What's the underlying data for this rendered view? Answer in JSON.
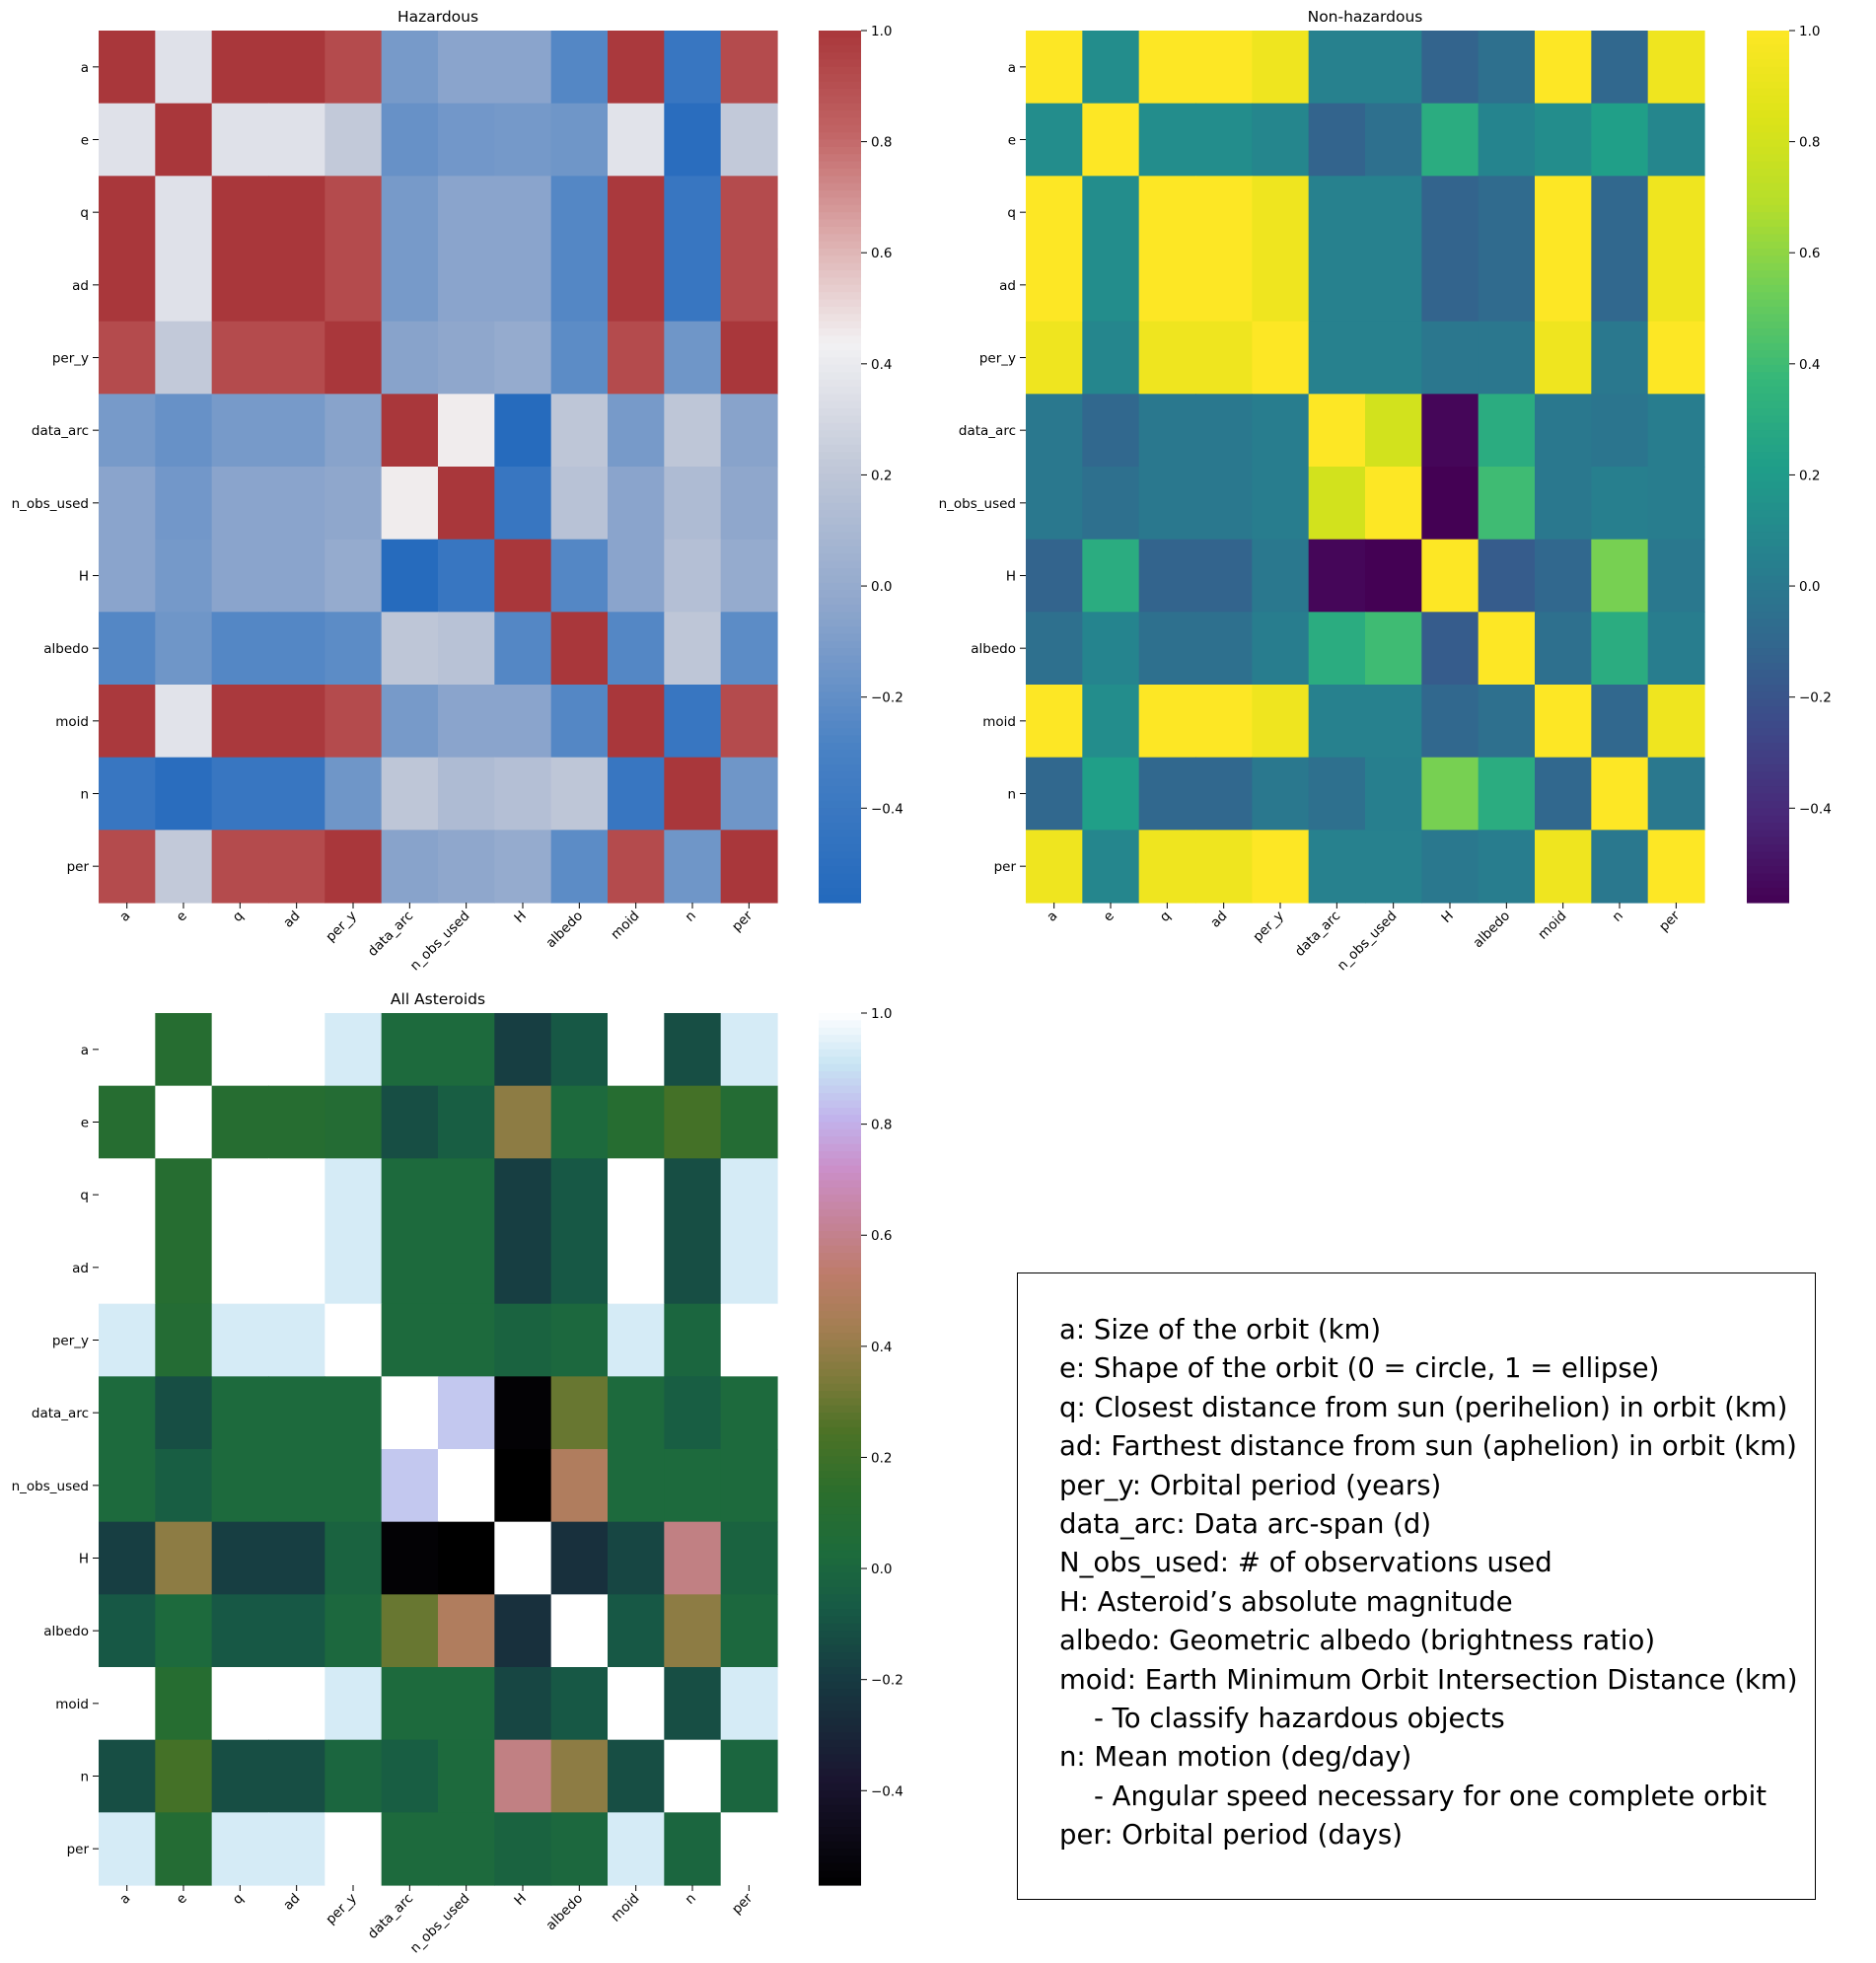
{
  "chart_data": [
    {
      "type": "heatmap",
      "title": "Hazardous",
      "colormap": "vlag",
      "variables": [
        "a",
        "e",
        "q",
        "ad",
        "per_y",
        "data_arc",
        "n_obs_used",
        "H",
        "albedo",
        "moid",
        "n",
        "per"
      ],
      "colorbar_range": [
        -0.57,
        1.0
      ],
      "colorbar_ticks": [
        1.0,
        0.8,
        0.6,
        0.4,
        0.2,
        0.0,
        -0.2,
        -0.4
      ],
      "colorbar_tick_labels": [
        "1.0",
        "0.8",
        "0.6",
        "0.4",
        "0.2",
        "0.0",
        "−0.2",
        "−0.4"
      ],
      "matrix": [
        [
          1.0,
          0.35,
          1.0,
          1.0,
          0.92,
          -0.12,
          -0.05,
          -0.05,
          -0.25,
          0.99,
          -0.42,
          0.92
        ],
        [
          0.35,
          1.0,
          0.35,
          0.35,
          0.22,
          -0.18,
          -0.14,
          -0.13,
          -0.15,
          0.36,
          -0.52,
          0.22
        ],
        [
          1.0,
          0.35,
          1.0,
          1.0,
          0.92,
          -0.12,
          -0.05,
          -0.05,
          -0.25,
          0.99,
          -0.42,
          0.92
        ],
        [
          1.0,
          0.35,
          1.0,
          1.0,
          0.92,
          -0.12,
          -0.05,
          -0.05,
          -0.25,
          0.99,
          -0.42,
          0.92
        ],
        [
          0.92,
          0.22,
          0.92,
          0.92,
          1.0,
          -0.06,
          -0.03,
          0.0,
          -0.22,
          0.92,
          -0.15,
          1.0
        ],
        [
          -0.12,
          -0.18,
          -0.12,
          -0.12,
          -0.06,
          1.0,
          0.45,
          -0.55,
          0.2,
          -0.12,
          0.2,
          -0.06
        ],
        [
          -0.05,
          -0.14,
          -0.05,
          -0.05,
          -0.03,
          0.45,
          1.0,
          -0.42,
          0.17,
          -0.05,
          0.12,
          -0.03
        ],
        [
          -0.05,
          -0.13,
          -0.05,
          -0.05,
          0.0,
          -0.55,
          -0.42,
          1.0,
          -0.25,
          -0.05,
          0.15,
          0.0
        ],
        [
          -0.25,
          -0.15,
          -0.25,
          -0.25,
          -0.22,
          0.2,
          0.17,
          -0.25,
          1.0,
          -0.25,
          0.2,
          -0.22
        ],
        [
          0.99,
          0.36,
          0.99,
          0.99,
          0.92,
          -0.12,
          -0.05,
          -0.05,
          -0.25,
          1.0,
          -0.42,
          0.92
        ],
        [
          -0.42,
          -0.52,
          -0.42,
          -0.42,
          -0.15,
          0.2,
          0.12,
          0.15,
          0.2,
          -0.42,
          1.0,
          -0.15
        ],
        [
          0.92,
          0.22,
          0.92,
          0.92,
          1.0,
          -0.06,
          -0.03,
          0.0,
          -0.22,
          0.92,
          -0.15,
          1.0
        ]
      ]
    },
    {
      "type": "heatmap",
      "title": "Non-hazardous",
      "colormap": "viridis",
      "variables": [
        "a",
        "e",
        "q",
        "ad",
        "per_y",
        "data_arc",
        "n_obs_used",
        "H",
        "albedo",
        "moid",
        "n",
        "per"
      ],
      "colorbar_range": [
        -0.57,
        1.0
      ],
      "colorbar_ticks": [
        1.0,
        0.8,
        0.6,
        0.4,
        0.2,
        0.0,
        -0.2,
        -0.4
      ],
      "colorbar_tick_labels": [
        "1.0",
        "0.8",
        "0.6",
        "0.4",
        "0.2",
        "0.0",
        "−0.2",
        "−0.4"
      ],
      "matrix": [
        [
          1.0,
          0.12,
          1.0,
          1.0,
          0.93,
          0.05,
          0.05,
          -0.12,
          -0.05,
          1.0,
          -0.1,
          0.93
        ],
        [
          0.12,
          1.0,
          0.12,
          0.12,
          0.08,
          -0.12,
          -0.05,
          0.3,
          0.07,
          0.12,
          0.22,
          0.08
        ],
        [
          1.0,
          0.12,
          1.0,
          1.0,
          0.93,
          0.05,
          0.05,
          -0.12,
          -0.08,
          1.0,
          -0.1,
          0.93
        ],
        [
          1.0,
          0.12,
          1.0,
          1.0,
          0.93,
          0.05,
          0.05,
          -0.12,
          -0.08,
          1.0,
          -0.1,
          0.93
        ],
        [
          0.93,
          0.08,
          0.93,
          0.93,
          1.0,
          0.05,
          0.05,
          -0.01,
          -0.01,
          0.93,
          0.0,
          1.0
        ],
        [
          0.0,
          -0.1,
          0.0,
          0.0,
          0.03,
          1.0,
          0.8,
          -0.55,
          0.3,
          0.0,
          -0.02,
          0.03
        ],
        [
          0.0,
          -0.05,
          0.0,
          0.0,
          0.03,
          0.8,
          1.0,
          -0.57,
          0.4,
          0.0,
          0.04,
          0.03
        ],
        [
          -0.12,
          0.3,
          -0.12,
          -0.12,
          0.0,
          -0.55,
          -0.57,
          1.0,
          -0.16,
          -0.1,
          0.55,
          0.0
        ],
        [
          -0.05,
          0.07,
          -0.05,
          -0.05,
          0.03,
          0.3,
          0.4,
          -0.16,
          1.0,
          -0.05,
          0.3,
          0.03
        ],
        [
          1.0,
          0.12,
          1.0,
          1.0,
          0.93,
          0.05,
          0.05,
          -0.1,
          -0.05,
          1.0,
          -0.1,
          0.93
        ],
        [
          -0.1,
          0.22,
          -0.1,
          -0.1,
          0.0,
          -0.05,
          0.04,
          0.55,
          0.3,
          -0.1,
          1.0,
          0.0
        ],
        [
          0.93,
          0.08,
          0.93,
          0.93,
          1.0,
          0.05,
          0.05,
          0.0,
          0.03,
          0.93,
          0.0,
          1.0
        ]
      ]
    },
    {
      "type": "heatmap",
      "title": "All Asteroids",
      "colormap": "cubehelix",
      "variables": [
        "a",
        "e",
        "q",
        "ad",
        "per_y",
        "data_arc",
        "n_obs_used",
        "H",
        "albedo",
        "moid",
        "n",
        "per"
      ],
      "colorbar_range": [
        -0.57,
        1.0
      ],
      "colorbar_ticks": [
        1.0,
        0.8,
        0.6,
        0.4,
        0.2,
        0.0,
        -0.2,
        -0.4
      ],
      "colorbar_tick_labels": [
        "1.0",
        "0.8",
        "0.6",
        "0.4",
        "0.2",
        "0.0",
        "−0.2",
        "−0.4"
      ],
      "matrix": [
        [
          1.0,
          0.1,
          1.0,
          1.0,
          0.93,
          0.02,
          0.02,
          -0.18,
          -0.08,
          1.0,
          -0.12,
          0.93
        ],
        [
          0.1,
          1.0,
          0.1,
          0.1,
          0.08,
          -0.12,
          -0.05,
          0.38,
          0.02,
          0.1,
          0.22,
          0.08
        ],
        [
          1.0,
          0.1,
          1.0,
          1.0,
          0.93,
          0.02,
          0.02,
          -0.18,
          -0.08,
          1.0,
          -0.12,
          0.93
        ],
        [
          1.0,
          0.1,
          1.0,
          1.0,
          0.93,
          0.02,
          0.02,
          -0.18,
          -0.08,
          1.0,
          -0.12,
          0.93
        ],
        [
          0.93,
          0.08,
          0.93,
          0.93,
          1.0,
          0.02,
          0.02,
          -0.02,
          0.01,
          0.93,
          0.0,
          1.0
        ],
        [
          0.02,
          -0.12,
          0.02,
          0.02,
          0.02,
          1.0,
          0.85,
          -0.55,
          0.3,
          0.02,
          -0.05,
          0.02
        ],
        [
          0.02,
          -0.05,
          0.02,
          0.02,
          0.02,
          0.85,
          1.0,
          -0.57,
          0.48,
          0.02,
          0.02,
          0.02
        ],
        [
          -0.18,
          0.38,
          -0.18,
          -0.18,
          -0.02,
          -0.55,
          -0.57,
          1.0,
          -0.25,
          -0.15,
          0.58,
          -0.02
        ],
        [
          -0.08,
          0.02,
          -0.08,
          -0.08,
          0.01,
          0.3,
          0.48,
          -0.25,
          1.0,
          -0.08,
          0.38,
          0.01
        ],
        [
          1.0,
          0.1,
          1.0,
          1.0,
          0.93,
          0.02,
          0.02,
          -0.15,
          -0.08,
          1.0,
          -0.12,
          0.93
        ],
        [
          -0.12,
          0.22,
          -0.12,
          -0.12,
          0.0,
          -0.05,
          0.02,
          0.58,
          0.38,
          -0.12,
          1.0,
          0.0
        ],
        [
          0.93,
          0.08,
          0.93,
          0.93,
          1.0,
          0.02,
          0.02,
          -0.02,
          0.01,
          0.93,
          0.0,
          1.0
        ]
      ]
    }
  ],
  "legend": {
    "lines": [
      "a: Size of the orbit (km)",
      "e: Shape of the orbit (0 = circle, 1 = ellipse)",
      "q: Closest distance from sun (perihelion) in orbit (km)",
      "ad: Farthest distance from sun (aphelion) in orbit (km)",
      "per_y: Orbital period (years)",
      "data_arc: Data arc-span (d)",
      "N_obs_used: # of observations used",
      "H: Asteroid’s absolute magnitude",
      "albedo: Geometric albedo (brightness ratio)",
      "moid: Earth Minimum Orbit Intersection Distance (km)",
      "    - To classify hazardous objects",
      "n: Mean motion (deg/day)",
      "    - Angular speed necessary for one complete orbit",
      "per: Orbital period (days)"
    ]
  }
}
